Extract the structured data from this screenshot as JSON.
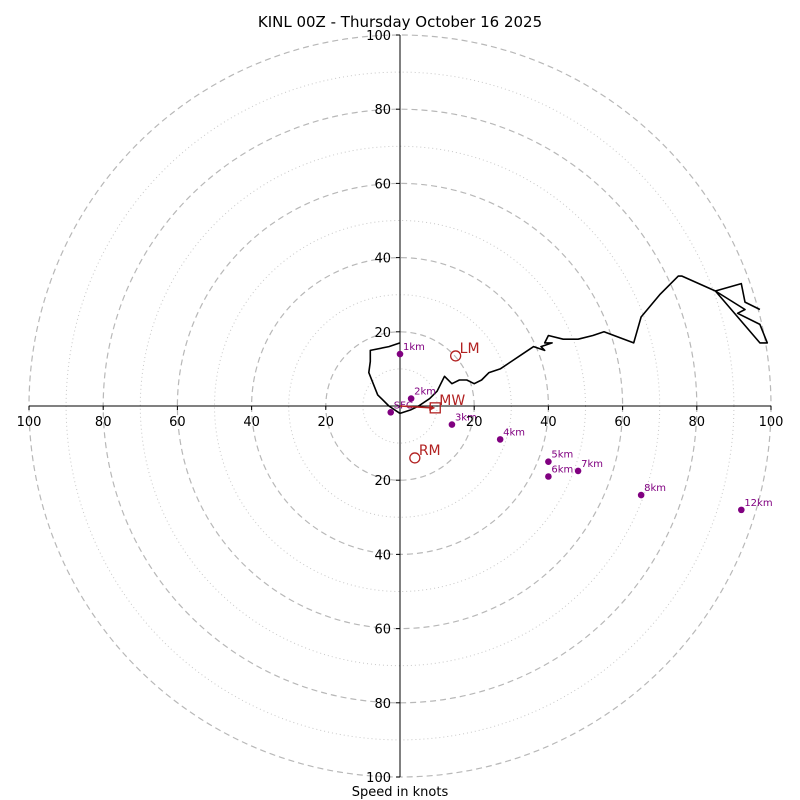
{
  "chart_data": {
    "type": "hodograph",
    "title": "KINL 00Z - Thursday October 16 2025",
    "xlabel": "Speed in knots",
    "range": [
      -100,
      100
    ],
    "major_rings": [
      20,
      40,
      60,
      80,
      100
    ],
    "minor_rings": [
      10,
      30,
      50,
      70,
      90
    ],
    "h_ticks": [
      -100,
      -80,
      -60,
      -40,
      -20,
      20,
      40,
      60,
      80,
      100
    ],
    "h_tick_labels": [
      "100",
      "80",
      "60",
      "40",
      "20",
      "20",
      "40",
      "60",
      "80",
      "100"
    ],
    "v_ticks": [
      100,
      80,
      60,
      40,
      20,
      -20,
      -40,
      -60,
      -80,
      -100
    ],
    "v_tick_labels": [
      "100",
      "80",
      "60",
      "40",
      "20",
      "20",
      "40",
      "60",
      "80",
      "100"
    ],
    "line_color": "#000000",
    "height_marker_color": "#800080",
    "motion_color": "#b22222",
    "hodograph": {
      "u": [
        0,
        -3,
        -8,
        -8,
        -8.4,
        -6,
        -3,
        0,
        3,
        5,
        8,
        10,
        12,
        14,
        16,
        18,
        20,
        22,
        24,
        27,
        30,
        33,
        36,
        39,
        38,
        41,
        39,
        40,
        44,
        48,
        52,
        55,
        63,
        65,
        70,
        75,
        76,
        85,
        97,
        99,
        97,
        91,
        93,
        85,
        92,
        93,
        97
      ],
      "v": [
        17,
        16,
        15,
        12,
        9,
        3,
        0,
        -2,
        -1,
        0,
        2,
        4,
        8,
        6,
        7,
        7,
        6,
        7,
        9,
        10,
        12,
        14,
        16,
        15,
        16,
        17,
        17,
        19,
        18,
        18,
        19,
        20,
        17,
        24,
        30,
        35,
        35,
        31,
        17,
        17,
        22,
        25,
        26,
        31,
        33,
        28,
        26
      ]
    },
    "height_markers": [
      {
        "label": "1km",
        "u": 0,
        "v": 14
      },
      {
        "label": "2km",
        "u": 3,
        "v": 2
      },
      {
        "label": "SFC",
        "u": -2.5,
        "v": -1.7
      },
      {
        "label": "3km",
        "u": 14,
        "v": -5
      },
      {
        "label": "4km",
        "u": 27,
        "v": -9
      },
      {
        "label": "5km",
        "u": 40,
        "v": -15
      },
      {
        "label": "6km",
        "u": 40,
        "v": -19
      },
      {
        "label": "7km",
        "u": 48,
        "v": -17.5
      },
      {
        "label": "8km",
        "u": 65,
        "v": -24
      },
      {
        "label": "12km",
        "u": 92,
        "v": -28
      }
    ],
    "motions": [
      {
        "label": "LM",
        "u": 15,
        "v": 13.5,
        "shape": "circle"
      },
      {
        "label": "RM",
        "u": 4,
        "v": -14,
        "shape": "circle"
      },
      {
        "label": "MW",
        "u": 9.5,
        "v": -0.5,
        "shape": "square"
      }
    ],
    "shear_vector": {
      "u0": 0,
      "v0": 0,
      "u1": 9.5,
      "v1": -0.5
    }
  }
}
